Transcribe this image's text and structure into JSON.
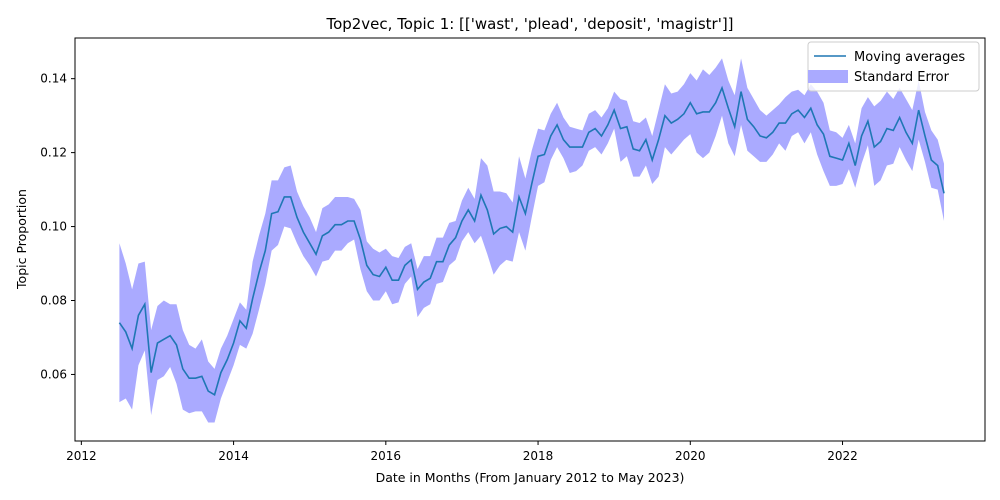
{
  "chart_data": {
    "type": "line",
    "title": "Top2vec, Topic 1: [['wast', 'plead', 'deposit', 'magistr']]",
    "xlabel": "Date in Months (From January 2012 to May 2023)",
    "ylabel": "Topic Proportion",
    "xlim": [
      "2011-12-01",
      "2023-11-15"
    ],
    "ylim": [
      0.042,
      0.151
    ],
    "x_ticks": [
      "2012",
      "2014",
      "2016",
      "2018",
      "2020",
      "2022"
    ],
    "y_ticks": [
      "0.06",
      "0.08",
      "0.10",
      "0.12",
      "0.14"
    ],
    "legend_position": "top-right",
    "grid": false,
    "x": [
      "2012-07",
      "2012-08",
      "2012-09",
      "2012-10",
      "2012-11",
      "2012-12",
      "2013-01",
      "2013-02",
      "2013-03",
      "2013-04",
      "2013-05",
      "2013-06",
      "2013-07",
      "2013-08",
      "2013-09",
      "2013-10",
      "2013-11",
      "2013-12",
      "2014-01",
      "2014-02",
      "2014-03",
      "2014-04",
      "2014-05",
      "2014-06",
      "2014-07",
      "2014-08",
      "2014-09",
      "2014-10",
      "2014-11",
      "2014-12",
      "2015-01",
      "2015-02",
      "2015-03",
      "2015-04",
      "2015-05",
      "2015-06",
      "2015-07",
      "2015-08",
      "2015-09",
      "2015-10",
      "2015-11",
      "2015-12",
      "2016-01",
      "2016-02",
      "2016-03",
      "2016-04",
      "2016-05",
      "2016-06",
      "2016-07",
      "2016-08",
      "2016-09",
      "2016-10",
      "2016-11",
      "2016-12",
      "2017-01",
      "2017-02",
      "2017-03",
      "2017-04",
      "2017-05",
      "2017-06",
      "2017-07",
      "2017-08",
      "2017-09",
      "2017-10",
      "2017-11",
      "2017-12",
      "2018-01",
      "2018-02",
      "2018-03",
      "2018-04",
      "2018-05",
      "2018-06",
      "2018-07",
      "2018-08",
      "2018-09",
      "2018-10",
      "2018-11",
      "2018-12",
      "2019-01",
      "2019-02",
      "2019-03",
      "2019-04",
      "2019-05",
      "2019-06",
      "2019-07",
      "2019-08",
      "2019-09",
      "2019-10",
      "2019-11",
      "2019-12",
      "2020-01",
      "2020-02",
      "2020-03",
      "2020-04",
      "2020-05",
      "2020-06",
      "2020-07",
      "2020-08",
      "2020-09",
      "2020-10",
      "2020-11",
      "2020-12",
      "2021-01",
      "2021-02",
      "2021-03",
      "2021-04",
      "2021-05",
      "2021-06",
      "2021-07",
      "2021-08",
      "2021-09",
      "2021-10",
      "2021-11",
      "2021-12",
      "2022-01",
      "2022-02",
      "2022-03",
      "2022-04",
      "2022-05",
      "2022-06",
      "2022-07",
      "2022-08",
      "2022-09",
      "2022-10",
      "2022-11",
      "2022-12",
      "2023-01",
      "2023-02",
      "2023-03",
      "2023-04",
      "2023-05"
    ],
    "series": [
      {
        "name": "Moving averages",
        "color": "#1f77b4",
        "values": [
          0.074,
          0.0715,
          0.067,
          0.076,
          0.079,
          0.0605,
          0.0685,
          0.0695,
          0.0705,
          0.068,
          0.0615,
          0.059,
          0.059,
          0.0595,
          0.0555,
          0.0545,
          0.0605,
          0.064,
          0.0685,
          0.0745,
          0.0725,
          0.0805,
          0.0875,
          0.0935,
          0.1035,
          0.104,
          0.108,
          0.108,
          0.1025,
          0.0985,
          0.0955,
          0.0925,
          0.0975,
          0.0985,
          0.1005,
          0.1005,
          0.1015,
          0.1015,
          0.0965,
          0.0895,
          0.087,
          0.0865,
          0.089,
          0.0855,
          0.0855,
          0.0895,
          0.091,
          0.083,
          0.085,
          0.086,
          0.0905,
          0.0905,
          0.095,
          0.097,
          0.1015,
          0.1045,
          0.1015,
          0.1085,
          0.1045,
          0.098,
          0.0995,
          0.1,
          0.0985,
          0.108,
          0.1035,
          0.1115,
          0.119,
          0.1195,
          0.1245,
          0.1275,
          0.1235,
          0.1215,
          0.1215,
          0.1215,
          0.1255,
          0.1265,
          0.1245,
          0.1275,
          0.1315,
          0.1265,
          0.127,
          0.121,
          0.1205,
          0.1235,
          0.118,
          0.1235,
          0.13,
          0.128,
          0.129,
          0.1305,
          0.1335,
          0.1305,
          0.131,
          0.131,
          0.1335,
          0.1375,
          0.132,
          0.127,
          0.1365,
          0.129,
          0.127,
          0.1245,
          0.124,
          0.1255,
          0.128,
          0.128,
          0.1305,
          0.1315,
          0.1295,
          0.132,
          0.1275,
          0.125,
          0.119,
          0.1185,
          0.118,
          0.1225,
          0.1165,
          0.1245,
          0.1285,
          0.1215,
          0.123,
          0.1265,
          0.126,
          0.1295,
          0.1255,
          0.1225,
          0.1315,
          0.1245,
          0.118,
          0.1165,
          0.109
        ]
      }
    ],
    "error_band": {
      "name": "Standard Error",
      "color": "#aaaaff",
      "upper": [
        0.0955,
        0.09,
        0.083,
        0.09,
        0.0905,
        0.072,
        0.0785,
        0.08,
        0.079,
        0.079,
        0.072,
        0.068,
        0.067,
        0.0695,
        0.0635,
        0.0615,
        0.067,
        0.0705,
        0.075,
        0.0795,
        0.0775,
        0.0905,
        0.0975,
        0.1035,
        0.1125,
        0.1125,
        0.116,
        0.1165,
        0.1095,
        0.1055,
        0.1025,
        0.0985,
        0.105,
        0.106,
        0.108,
        0.108,
        0.108,
        0.1075,
        0.1045,
        0.096,
        0.094,
        0.093,
        0.094,
        0.092,
        0.0915,
        0.0945,
        0.0955,
        0.0885,
        0.092,
        0.092,
        0.097,
        0.097,
        0.101,
        0.1015,
        0.107,
        0.1105,
        0.1075,
        0.1185,
        0.1165,
        0.1095,
        0.1095,
        0.109,
        0.1065,
        0.119,
        0.113,
        0.1205,
        0.1265,
        0.126,
        0.1305,
        0.1335,
        0.1295,
        0.127,
        0.1265,
        0.126,
        0.1305,
        0.1315,
        0.1295,
        0.132,
        0.1365,
        0.1345,
        0.134,
        0.1285,
        0.128,
        0.1295,
        0.1245,
        0.1315,
        0.1385,
        0.136,
        0.1365,
        0.1385,
        0.1415,
        0.1395,
        0.1425,
        0.141,
        0.143,
        0.1455,
        0.1395,
        0.1355,
        0.1455,
        0.1375,
        0.1345,
        0.1315,
        0.13,
        0.1315,
        0.133,
        0.135,
        0.1365,
        0.137,
        0.1355,
        0.1385,
        0.1365,
        0.1335,
        0.126,
        0.1255,
        0.124,
        0.1275,
        0.1225,
        0.132,
        0.135,
        0.1325,
        0.134,
        0.1365,
        0.1345,
        0.1375,
        0.1345,
        0.1315,
        0.1395,
        0.131,
        0.126,
        0.1235,
        0.117
      ]
    },
    "error_band_lower": [
      0.0525,
      0.0535,
      0.0505,
      0.0625,
      0.0665,
      0.049,
      0.0585,
      0.0595,
      0.062,
      0.0575,
      0.0505,
      0.0495,
      0.05,
      0.05,
      0.047,
      0.047,
      0.0535,
      0.058,
      0.0625,
      0.068,
      0.067,
      0.071,
      0.0775,
      0.0845,
      0.0935,
      0.095,
      0.1,
      0.0995,
      0.0955,
      0.092,
      0.0895,
      0.0865,
      0.0905,
      0.091,
      0.0935,
      0.0935,
      0.0955,
      0.0965,
      0.0885,
      0.0825,
      0.08,
      0.08,
      0.0825,
      0.079,
      0.0795,
      0.0845,
      0.0865,
      0.0755,
      0.078,
      0.079,
      0.0845,
      0.085,
      0.0895,
      0.091,
      0.096,
      0.0985,
      0.0955,
      0.0975,
      0.0925,
      0.087,
      0.0895,
      0.091,
      0.0905,
      0.0985,
      0.0935,
      0.1025,
      0.111,
      0.112,
      0.118,
      0.1215,
      0.1185,
      0.1145,
      0.115,
      0.1165,
      0.1205,
      0.1215,
      0.1195,
      0.1225,
      0.1265,
      0.1175,
      0.119,
      0.1135,
      0.1135,
      0.1165,
      0.1115,
      0.1135,
      0.1215,
      0.1195,
      0.1215,
      0.1235,
      0.125,
      0.12,
      0.1185,
      0.12,
      0.1245,
      0.13,
      0.1225,
      0.119,
      0.1275,
      0.1205,
      0.119,
      0.1175,
      0.1175,
      0.1195,
      0.1225,
      0.1205,
      0.1245,
      0.1255,
      0.1225,
      0.1255,
      0.1195,
      0.115,
      0.111,
      0.111,
      0.1115,
      0.1155,
      0.1105,
      0.117,
      0.122,
      0.111,
      0.1125,
      0.1165,
      0.117,
      0.1215,
      0.118,
      0.115,
      0.1235,
      0.1175,
      0.1105,
      0.11,
      0.1015
    ]
  }
}
